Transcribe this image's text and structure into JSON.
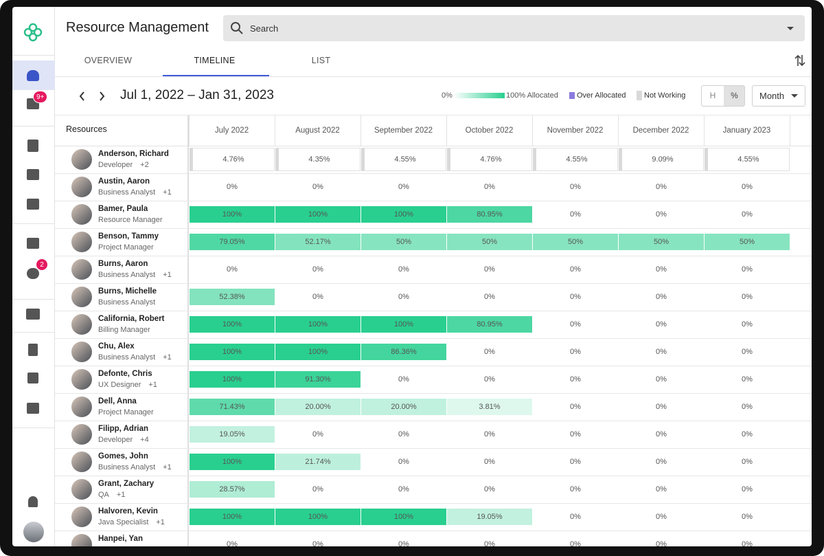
{
  "header": {
    "title": "Resource Management",
    "search_placeholder": "Search"
  },
  "sidebar": {
    "badges": [
      "9+",
      "2"
    ]
  },
  "tabs": {
    "items": [
      "OVERVIEW",
      "TIMELINE",
      "LIST"
    ],
    "active": 1
  },
  "toolbar": {
    "date_range": "Jul 1, 2022 – Jan 31, 2023",
    "legend": {
      "scale_start": "0%",
      "scale_end": "100% Allocated",
      "over_allocated": "Over Allocated",
      "not_working": "Not Working"
    },
    "unit_toggle": [
      "H",
      "%"
    ],
    "period": "Month"
  },
  "table": {
    "resources_header": "Resources",
    "months": [
      "July 2022",
      "August 2022",
      "September 2022",
      "October 2022",
      "November 2022",
      "December 2022",
      "January 2023"
    ],
    "rows": [
      {
        "name": "Anderson, Richard",
        "role": "Developer",
        "extra": "+2",
        "cells": [
          "4.76%",
          "4.35%",
          "4.55%",
          "4.76%",
          "4.55%",
          "9.09%",
          "4.55%"
        ]
      },
      {
        "name": "Austin, Aaron",
        "role": "Business Analyst",
        "extra": "+1",
        "cells": [
          "0%",
          "0%",
          "0%",
          "0%",
          "0%",
          "0%",
          "0%"
        ]
      },
      {
        "name": "Bamer, Paula",
        "role": "Resource Manager",
        "cells": [
          "100%",
          "100%",
          "100%",
          "80.95%",
          "0%",
          "0%",
          "0%"
        ]
      },
      {
        "name": "Benson, Tammy",
        "role": "Project Manager",
        "cells": [
          "79.05%",
          "52.17%",
          "50%",
          "50%",
          "50%",
          "50%",
          "50%"
        ]
      },
      {
        "name": "Burns, Aaron",
        "role": "Business Analyst",
        "extra": "+1",
        "cells": [
          "0%",
          "0%",
          "0%",
          "0%",
          "0%",
          "0%",
          "0%"
        ]
      },
      {
        "name": "Burns, Michelle",
        "role": "Business Analyst",
        "cells": [
          "52.38%",
          "0%",
          "0%",
          "0%",
          "0%",
          "0%",
          "0%"
        ]
      },
      {
        "name": "California, Robert",
        "role": "Billing Manager",
        "cells": [
          "100%",
          "100%",
          "100%",
          "80.95%",
          "0%",
          "0%",
          "0%"
        ]
      },
      {
        "name": "Chu, Alex",
        "role": "Business Analyst",
        "extra": "+1",
        "cells": [
          "100%",
          "100%",
          "86.36%",
          "0%",
          "0%",
          "0%",
          "0%"
        ]
      },
      {
        "name": "Defonte, Chris",
        "role": "UX Designer",
        "extra": "+1",
        "cells": [
          "100%",
          "91.30%",
          "0%",
          "0%",
          "0%",
          "0%",
          "0%"
        ]
      },
      {
        "name": "Dell, Anna",
        "role": "Project Manager",
        "cells": [
          "71.43%",
          "20.00%",
          "20.00%",
          "3.81%",
          "0%",
          "0%",
          "0%"
        ]
      },
      {
        "name": "Filipp, Adrian",
        "role": "Developer",
        "extra": "+4",
        "cells": [
          "19.05%",
          "0%",
          "0%",
          "0%",
          "0%",
          "0%",
          "0%"
        ]
      },
      {
        "name": "Gomes, John",
        "role": "Business Analyst",
        "extra": "+1",
        "cells": [
          "100%",
          "21.74%",
          "0%",
          "0%",
          "0%",
          "0%",
          "0%"
        ]
      },
      {
        "name": "Grant, Zachary",
        "role": "QA",
        "extra": "+1",
        "cells": [
          "28.57%",
          "0%",
          "0%",
          "0%",
          "0%",
          "0%",
          "0%"
        ]
      },
      {
        "name": "Halvoren, Kevin",
        "role": "Java Specialist",
        "extra": "+1",
        "cells": [
          "100%",
          "100%",
          "100%",
          "19.05%",
          "0%",
          "0%",
          "0%"
        ]
      },
      {
        "name": "Hanpei, Yan",
        "cells": [
          "0%",
          "0%",
          "0%",
          "0%",
          "0%",
          "0%",
          "0%"
        ]
      }
    ]
  }
}
